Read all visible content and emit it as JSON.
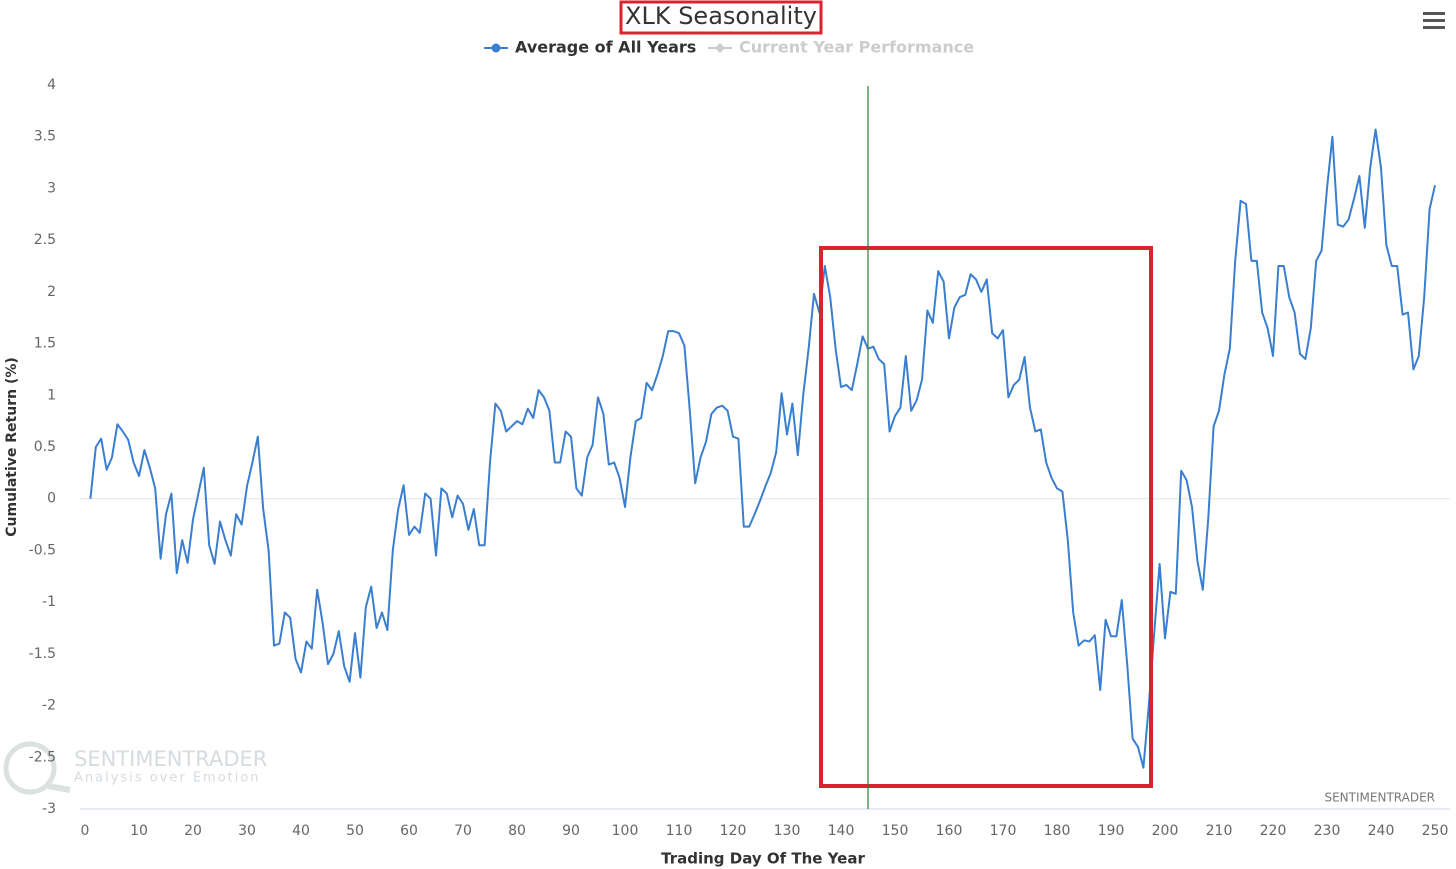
{
  "chart_data": {
    "type": "line",
    "title": "XLK Seasonality",
    "xlabel": "Trading Day Of The Year",
    "ylabel": "Cumulative Return (%)",
    "watermark": "SENTIMENTRADER",
    "watermark_tagline": "Analysis over Emotion",
    "credit": "SENTIMENTRADER",
    "legend_inactive": {
      "name": "Current Year Performance",
      "color": "#cccccc"
    },
    "xlim": [
      0,
      250
    ],
    "ylim": [
      -3,
      4
    ],
    "xticks": [
      0,
      10,
      20,
      30,
      40,
      50,
      60,
      70,
      80,
      90,
      100,
      110,
      120,
      130,
      140,
      150,
      160,
      170,
      180,
      190,
      200,
      210,
      220,
      230,
      240,
      250
    ],
    "yticks": [
      4,
      3.5,
      3,
      2.5,
      2,
      1.5,
      1,
      0.5,
      0,
      -0.5,
      -1,
      -1.5,
      -2,
      -2.5,
      -3
    ],
    "grid": false,
    "x": [
      1,
      2,
      3,
      4,
      5,
      6,
      7,
      8,
      9,
      10,
      11,
      12,
      13,
      14,
      15,
      16,
      17,
      18,
      19,
      20,
      21,
      22,
      23,
      24,
      25,
      26,
      27,
      28,
      29,
      30,
      31,
      32,
      33,
      34,
      35,
      36,
      37,
      38,
      39,
      40,
      41,
      42,
      43,
      44,
      45,
      46,
      47,
      48,
      49,
      50,
      51,
      52,
      53,
      54,
      55,
      56,
      57,
      58,
      59,
      60,
      61,
      62,
      63,
      64,
      65,
      66,
      67,
      68,
      69,
      70,
      71,
      72,
      73,
      74,
      75,
      76,
      77,
      78,
      79,
      80,
      81,
      82,
      83,
      84,
      85,
      86,
      87,
      88,
      89,
      90,
      91,
      92,
      93,
      94,
      95,
      96,
      97,
      98,
      99,
      100,
      101,
      102,
      103,
      104,
      105,
      106,
      107,
      108,
      109,
      110,
      111,
      112,
      113,
      114,
      115,
      116,
      117,
      118,
      119,
      120,
      121,
      122,
      123,
      124,
      125,
      126,
      127,
      128,
      129,
      130,
      131,
      132,
      133,
      134,
      135,
      136,
      137,
      138,
      139,
      140,
      141,
      142,
      143,
      144,
      145,
      146,
      147,
      148,
      149,
      150,
      151,
      152,
      153,
      154,
      155,
      156,
      157,
      158,
      159,
      160,
      161,
      162,
      163,
      164,
      165,
      166,
      167,
      168,
      169,
      170,
      171,
      172,
      173,
      174,
      175,
      176,
      177,
      178,
      179,
      180,
      181,
      182,
      183,
      184,
      185,
      186,
      187,
      188,
      189,
      190,
      191,
      192,
      193,
      194,
      195,
      196,
      197,
      198,
      199,
      200,
      201,
      202,
      203,
      204,
      205,
      206,
      207,
      208,
      209,
      210,
      211,
      212,
      213,
      214,
      215,
      216,
      217,
      218,
      219,
      220,
      221,
      222,
      223,
      224,
      225,
      226,
      227,
      228,
      229,
      230,
      231,
      232,
      233,
      234,
      235,
      236,
      237,
      238,
      239,
      240,
      241,
      242,
      243,
      244,
      245,
      246,
      247,
      248,
      249,
      250
    ],
    "series": [
      {
        "name": "Average of All Years",
        "color": "#3a7fcf",
        "values": [
          0,
          0.5,
          0.58,
          0.28,
          0.4,
          0.72,
          0.65,
          0.57,
          0.35,
          0.22,
          0.47,
          0.3,
          0.1,
          -0.58,
          -0.15,
          0.05,
          -0.72,
          -0.4,
          -0.62,
          -0.2,
          0.05,
          0.3,
          -0.45,
          -0.63,
          -0.22,
          -0.4,
          -0.55,
          -0.15,
          -0.25,
          0.12,
          0.35,
          0.6,
          -0.1,
          -0.5,
          -1.42,
          -1.4,
          -1.1,
          -1.15,
          -1.55,
          -1.68,
          -1.38,
          -1.45,
          -0.88,
          -1.2,
          -1.6,
          -1.5,
          -1.28,
          -1.62,
          -1.77,
          -1.3,
          -1.73,
          -1.05,
          -0.85,
          -1.25,
          -1.1,
          -1.27,
          -0.5,
          -0.1,
          0.13,
          -0.35,
          -0.27,
          -0.33,
          0.05,
          0,
          -0.55,
          0.1,
          0.05,
          -0.18,
          0.03,
          -0.05,
          -0.3,
          -0.1,
          -0.45,
          -0.45,
          0.35,
          0.92,
          0.85,
          0.65,
          0.7,
          0.75,
          0.72,
          0.87,
          0.78,
          1.05,
          0.98,
          0.85,
          0.35,
          0.35,
          0.65,
          0.6,
          0.1,
          0.03,
          0.4,
          0.52,
          0.98,
          0.82,
          0.33,
          0.35,
          0.2,
          -0.08,
          0.4,
          0.75,
          0.78,
          1.12,
          1.05,
          1.2,
          1.38,
          1.62,
          1.62,
          1.6,
          1.48,
          0.85,
          0.15,
          0.4,
          0.55,
          0.82,
          0.88,
          0.9,
          0.85,
          0.6,
          0.58,
          -0.27,
          -0.27,
          -0.15,
          -0.02,
          0.12,
          0.25,
          0.45,
          1.02,
          0.62,
          0.92,
          0.42,
          1.0,
          1.45,
          1.98,
          1.8,
          2.25,
          1.95,
          1.45,
          1.08,
          1.1,
          1.05,
          1.3,
          1.57,
          1.45,
          1.47,
          1.35,
          1.3,
          0.65,
          0.8,
          0.88,
          1.38,
          0.85,
          0.95,
          1.15,
          1.82,
          1.7,
          2.2,
          2.1,
          1.55,
          1.85,
          1.95,
          1.97,
          2.17,
          2.12,
          2.0,
          2.12,
          1.6,
          1.55,
          1.63,
          0.98,
          1.1,
          1.15,
          1.37,
          0.88,
          0.65,
          0.67,
          0.35,
          0.2,
          0.1,
          0.07,
          -0.4,
          -1.1,
          -1.42,
          -1.37,
          -1.38,
          -1.32,
          -1.85,
          -1.17,
          -1.33,
          -1.33,
          -0.98,
          -1.6,
          -2.32,
          -2.4,
          -2.6,
          -2.0,
          -1.3,
          -0.63,
          -1.35,
          -0.9,
          -0.92,
          0.27,
          0.18,
          -0.08,
          -0.6,
          -0.88,
          -0.2,
          0.7,
          0.85,
          1.2,
          1.45,
          2.3,
          2.88,
          2.85,
          2.3,
          2.3,
          1.8,
          1.65,
          1.38,
          2.25,
          2.25,
          1.95,
          1.8,
          1.4,
          1.35,
          1.65,
          2.3,
          2.4,
          3.0,
          3.5,
          2.65,
          2.63,
          2.7,
          2.9,
          3.12,
          2.62,
          3.2,
          3.57,
          3.2,
          2.45,
          2.25,
          2.25,
          1.78,
          1.8,
          1.25,
          1.38,
          1.95,
          2.8,
          3.03
        ]
      }
    ]
  }
}
